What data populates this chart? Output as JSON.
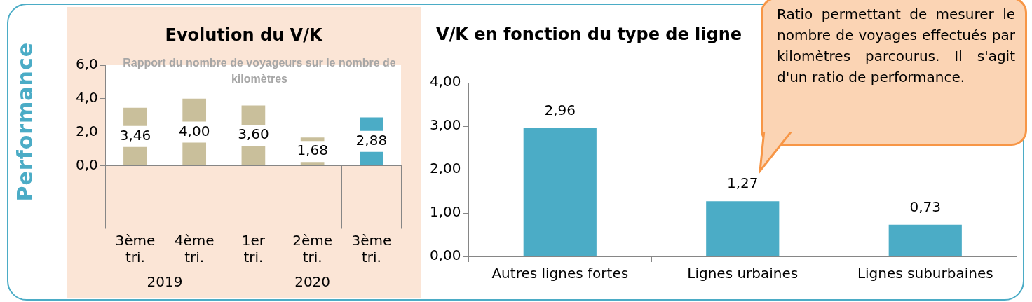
{
  "chart_data": [
    {
      "type": "bar",
      "title": "Evolution du V/K",
      "subtitle": "Rapport  du nombre de voyageurs sur le nombre de kilomètres",
      "ylabel": "Performance",
      "categories": [
        "3ème tri.",
        "4ème tri.",
        "1er tri.",
        "2ème tri.",
        "3ème tri."
      ],
      "values": [
        3.46,
        4.0,
        3.6,
        1.68,
        2.88
      ],
      "colors": [
        "#c9bf9b",
        "#c9bf9b",
        "#c9bf9b",
        "#c9bf9b",
        "#4bacc6"
      ],
      "value_labels": [
        "3,46",
        "4,00",
        "3,60",
        "1,68",
        "2,88"
      ],
      "ylim": [
        0,
        6
      ],
      "yticks": [
        {
          "value": 0,
          "label": "0,0"
        },
        {
          "value": 2,
          "label": "2,0"
        },
        {
          "value": 4,
          "label": "4,0"
        },
        {
          "value": 6,
          "label": "6,0"
        }
      ],
      "annotations": [
        "2019",
        "2020"
      ]
    },
    {
      "type": "bar",
      "title": "V/K en fonction du type de ligne",
      "categories": [
        "Autres lignes fortes",
        "Lignes urbaines",
        "Lignes suburbaines"
      ],
      "values": [
        2.96,
        1.27,
        0.73
      ],
      "color": "#4bacc6",
      "value_labels": [
        "2,96",
        "1,27",
        "0,73"
      ],
      "ylim": [
        0,
        4
      ],
      "yticks": [
        {
          "value": 0,
          "label": "0,00"
        },
        {
          "value": 1,
          "label": "1,00"
        },
        {
          "value": 2,
          "label": "2,00"
        },
        {
          "value": 3,
          "label": "3,00"
        },
        {
          "value": 4,
          "label": "4,00"
        }
      ]
    },
    {
      "type": "other",
      "annotations": [
        "Ratio permettant de mesurer le nombre de voyages effectués par kilomètres parcourus. Il s'agit d'un ratio de performance."
      ]
    }
  ]
}
